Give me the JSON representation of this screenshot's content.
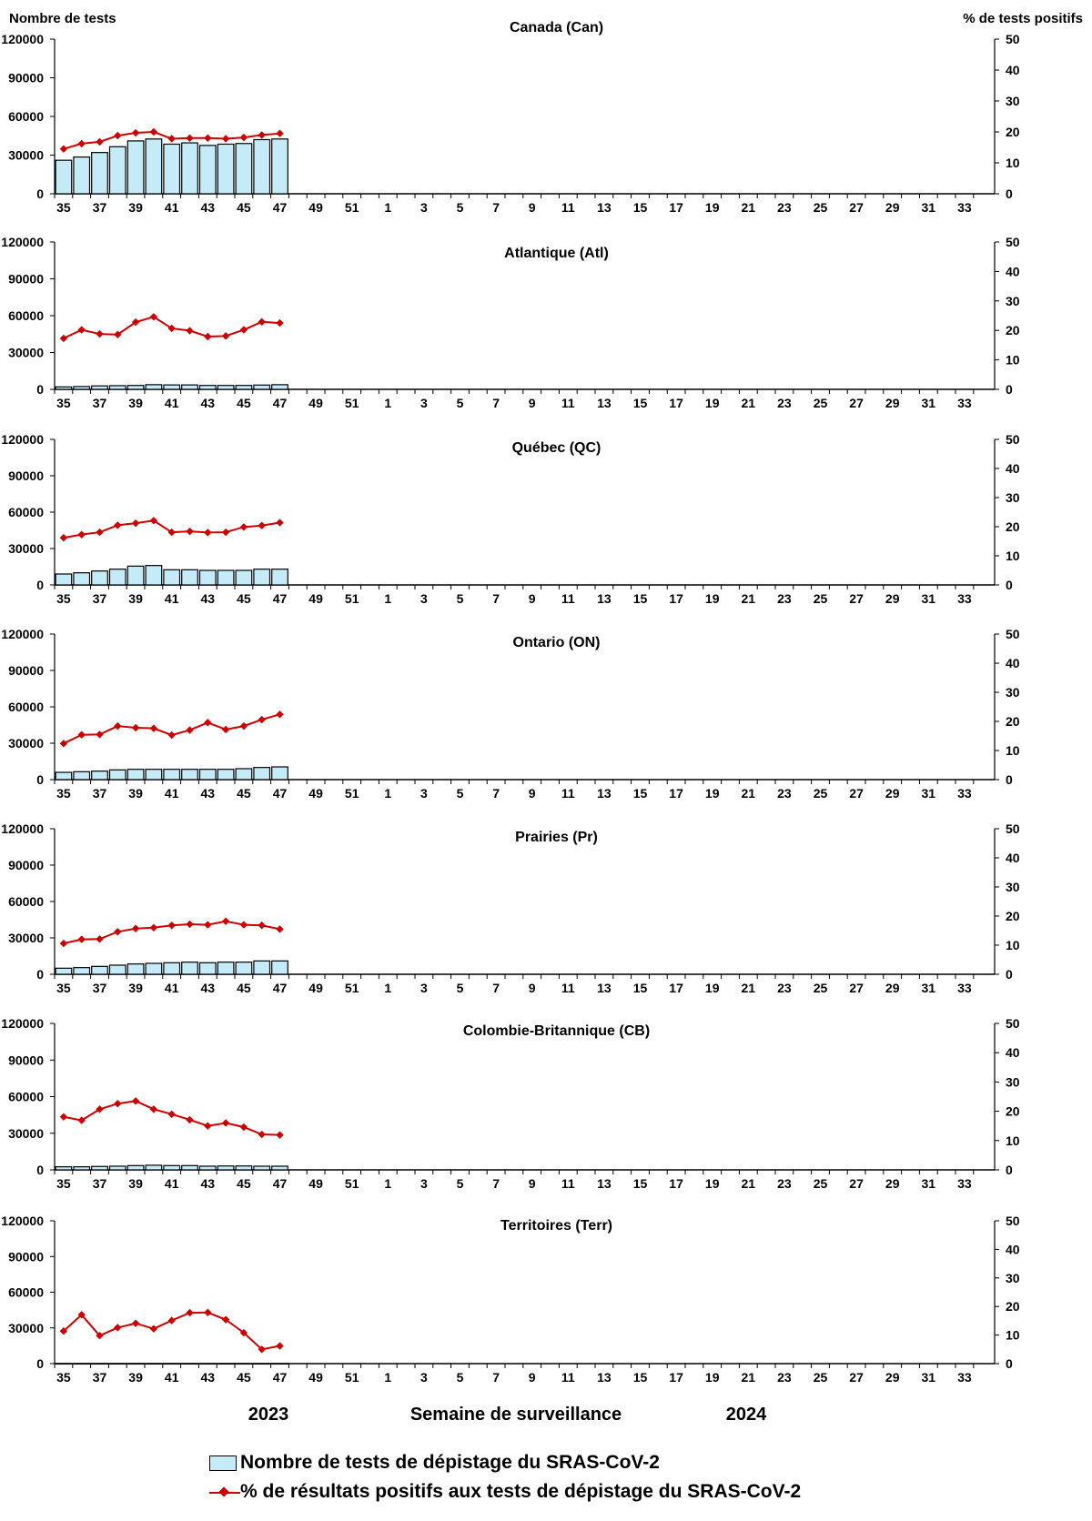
{
  "colors": {
    "bar_fill": "#c5ebf9",
    "bar_stroke": "#000000",
    "line": "#cc0000",
    "axis": "#000000"
  },
  "axis_titles": {
    "left": "Nombre de tests",
    "right": "% de tests positifs"
  },
  "footer": {
    "year_left": "2023",
    "xlabel": "Semaine de surveillance",
    "year_right": "2024"
  },
  "legend": {
    "bar_label": "Nombre de tests de dépistage du SRAS-CoV-2",
    "line_label": "% de résultats positifs aux tests de dépistage du SRAS-CoV-2"
  },
  "chart_data": [
    {
      "type": "bar+line",
      "title": "Canada (Can)",
      "categories": [
        35,
        36,
        37,
        38,
        39,
        40,
        41,
        42,
        43,
        44,
        45,
        46,
        47,
        48,
        49,
        50,
        51,
        52,
        1,
        2,
        3,
        4,
        5,
        6,
        7,
        8,
        9,
        10,
        11,
        12,
        13,
        14,
        15,
        16,
        17,
        18,
        19,
        20,
        21,
        22,
        23,
        24,
        25,
        26,
        27,
        28,
        29,
        30,
        31,
        32,
        33,
        34
      ],
      "x_tick_labels": [
        "35",
        "37",
        "39",
        "41",
        "43",
        "45",
        "47",
        "49",
        "51",
        "1",
        "3",
        "5",
        "7",
        "9",
        "11",
        "13",
        "15",
        "17",
        "19",
        "21",
        "23",
        "25",
        "27",
        "29",
        "31",
        "33"
      ],
      "y_left_ticks": [
        "0",
        "30000",
        "60000",
        "90000",
        "120000"
      ],
      "y_left_lim": [
        0,
        120000
      ],
      "y_right_ticks": [
        "0",
        "10",
        "20",
        "30",
        "40",
        "50"
      ],
      "y_right_lim": [
        0,
        50
      ],
      "tests": [
        26000,
        28500,
        32000,
        36500,
        41000,
        42500,
        38500,
        39500,
        37500,
        38500,
        39000,
        42000,
        42500
      ],
      "pct_positive": [
        14.5,
        16.2,
        16.8,
        18.8,
        19.7,
        20.0,
        17.8,
        18.0,
        18.0,
        17.8,
        18.2,
        19.0,
        19.5
      ]
    },
    {
      "type": "bar+line",
      "title": "Atlantique (Atl)",
      "categories": [
        35,
        36,
        37,
        38,
        39,
        40,
        41,
        42,
        43,
        44,
        45,
        46,
        47,
        48,
        49,
        50,
        51,
        52,
        1,
        2,
        3,
        4,
        5,
        6,
        7,
        8,
        9,
        10,
        11,
        12,
        13,
        14,
        15,
        16,
        17,
        18,
        19,
        20,
        21,
        22,
        23,
        24,
        25,
        26,
        27,
        28,
        29,
        30,
        31,
        32,
        33,
        34
      ],
      "x_tick_labels": [
        "35",
        "37",
        "39",
        "41",
        "43",
        "45",
        "47",
        "49",
        "51",
        "1",
        "3",
        "5",
        "7",
        "9",
        "11",
        "13",
        "15",
        "17",
        "19",
        "21",
        "23",
        "25",
        "27",
        "29",
        "31",
        "33"
      ],
      "y_left_ticks": [
        "0",
        "30000",
        "60000",
        "90000",
        "120000"
      ],
      "y_left_lim": [
        0,
        120000
      ],
      "y_right_ticks": [
        "0",
        "10",
        "20",
        "30",
        "40",
        "50"
      ],
      "y_right_lim": [
        0,
        50
      ],
      "tests": [
        2000,
        2300,
        2800,
        3000,
        3200,
        3800,
        3600,
        3600,
        3200,
        3200,
        3200,
        3500,
        3800
      ],
      "pct_positive": [
        17.3,
        20.2,
        18.8,
        18.6,
        22.8,
        24.6,
        20.7,
        19.9,
        17.9,
        18.1,
        20.2,
        22.9,
        22.5
      ]
    },
    {
      "type": "bar+line",
      "title": "Québec (QC)",
      "categories": [
        35,
        36,
        37,
        38,
        39,
        40,
        41,
        42,
        43,
        44,
        45,
        46,
        47,
        48,
        49,
        50,
        51,
        52,
        1,
        2,
        3,
        4,
        5,
        6,
        7,
        8,
        9,
        10,
        11,
        12,
        13,
        14,
        15,
        16,
        17,
        18,
        19,
        20,
        21,
        22,
        23,
        24,
        25,
        26,
        27,
        28,
        29,
        30,
        31,
        32,
        33,
        34
      ],
      "x_tick_labels": [
        "35",
        "37",
        "39",
        "41",
        "43",
        "45",
        "47",
        "49",
        "51",
        "1",
        "3",
        "5",
        "7",
        "9",
        "11",
        "13",
        "15",
        "17",
        "19",
        "21",
        "23",
        "25",
        "27",
        "29",
        "31",
        "33"
      ],
      "y_left_ticks": [
        "0",
        "30000",
        "60000",
        "90000",
        "120000"
      ],
      "y_left_lim": [
        0,
        120000
      ],
      "y_right_ticks": [
        "0",
        "10",
        "20",
        "30",
        "40",
        "50"
      ],
      "y_right_lim": [
        0,
        50
      ],
      "tests": [
        9000,
        10000,
        11500,
        13000,
        15500,
        16000,
        12500,
        12500,
        12000,
        12000,
        12000,
        13000,
        13000
      ],
      "pct_positive": [
        16.2,
        17.3,
        18.1,
        20.5,
        21.2,
        22.1,
        18.1,
        18.4,
        18.0,
        18.1,
        19.9,
        20.4,
        21.4
      ]
    },
    {
      "type": "bar+line",
      "title": "Ontario (ON)",
      "categories": [
        35,
        36,
        37,
        38,
        39,
        40,
        41,
        42,
        43,
        44,
        45,
        46,
        47,
        48,
        49,
        50,
        51,
        52,
        1,
        2,
        3,
        4,
        5,
        6,
        7,
        8,
        9,
        10,
        11,
        12,
        13,
        14,
        15,
        16,
        17,
        18,
        19,
        20,
        21,
        22,
        23,
        24,
        25,
        26,
        27,
        28,
        29,
        30,
        31,
        32,
        33,
        34
      ],
      "x_tick_labels": [
        "35",
        "37",
        "39",
        "41",
        "43",
        "45",
        "47",
        "49",
        "51",
        "1",
        "3",
        "5",
        "7",
        "9",
        "11",
        "13",
        "15",
        "17",
        "19",
        "21",
        "23",
        "25",
        "27",
        "29",
        "31",
        "33"
      ],
      "y_left_ticks": [
        "0",
        "30000",
        "60000",
        "90000",
        "120000"
      ],
      "y_left_lim": [
        0,
        120000
      ],
      "y_right_ticks": [
        "0",
        "10",
        "20",
        "30",
        "40",
        "50"
      ],
      "y_right_lim": [
        0,
        50
      ],
      "tests": [
        6000,
        6500,
        7000,
        8000,
        8500,
        8500,
        8500,
        8500,
        8500,
        8500,
        9000,
        10000,
        10500
      ],
      "pct_positive": [
        12.4,
        15.4,
        15.5,
        18.4,
        17.8,
        17.6,
        15.3,
        17.0,
        19.6,
        17.2,
        18.4,
        20.6,
        22.4
      ]
    },
    {
      "type": "bar+line",
      "title": "Prairies (Pr)",
      "categories": [
        35,
        36,
        37,
        38,
        39,
        40,
        41,
        42,
        43,
        44,
        45,
        46,
        47,
        48,
        49,
        50,
        51,
        52,
        1,
        2,
        3,
        4,
        5,
        6,
        7,
        8,
        9,
        10,
        11,
        12,
        13,
        14,
        15,
        16,
        17,
        18,
        19,
        20,
        21,
        22,
        23,
        24,
        25,
        26,
        27,
        28,
        29,
        30,
        31,
        32,
        33,
        34
      ],
      "x_tick_labels": [
        "35",
        "37",
        "39",
        "41",
        "43",
        "45",
        "47",
        "49",
        "51",
        "1",
        "3",
        "5",
        "7",
        "9",
        "11",
        "13",
        "15",
        "17",
        "19",
        "21",
        "23",
        "25",
        "27",
        "29",
        "31",
        "33"
      ],
      "y_left_ticks": [
        "0",
        "30000",
        "60000",
        "90000",
        "120000"
      ],
      "y_left_lim": [
        0,
        120000
      ],
      "y_right_ticks": [
        "0",
        "10",
        "20",
        "30",
        "40",
        "50"
      ],
      "y_right_lim": [
        0,
        50
      ],
      "tests": [
        5000,
        5500,
        6500,
        7500,
        8500,
        9000,
        9500,
        10000,
        9500,
        10000,
        10000,
        11000,
        11000
      ],
      "pct_positive": [
        10.6,
        12.0,
        12.1,
        14.6,
        15.7,
        16.0,
        16.8,
        17.2,
        17.0,
        18.2,
        17.0,
        16.8,
        15.5
      ]
    },
    {
      "type": "bar+line",
      "title": "Colombie-Britannique (CB)",
      "categories": [
        35,
        36,
        37,
        38,
        39,
        40,
        41,
        42,
        43,
        44,
        45,
        46,
        47,
        48,
        49,
        50,
        51,
        52,
        1,
        2,
        3,
        4,
        5,
        6,
        7,
        8,
        9,
        10,
        11,
        12,
        13,
        14,
        15,
        16,
        17,
        18,
        19,
        20,
        21,
        22,
        23,
        24,
        25,
        26,
        27,
        28,
        29,
        30,
        31,
        32,
        33,
        34
      ],
      "x_tick_labels": [
        "35",
        "37",
        "39",
        "41",
        "43",
        "45",
        "47",
        "49",
        "51",
        "1",
        "3",
        "5",
        "7",
        "9",
        "11",
        "13",
        "15",
        "17",
        "19",
        "21",
        "23",
        "25",
        "27",
        "29",
        "31",
        "33"
      ],
      "y_left_ticks": [
        "0",
        "30000",
        "60000",
        "90000",
        "120000"
      ],
      "y_left_lim": [
        0,
        120000
      ],
      "y_right_ticks": [
        "0",
        "10",
        "20",
        "30",
        "40",
        "50"
      ],
      "y_right_lim": [
        0,
        50
      ],
      "tests": [
        2500,
        2500,
        2800,
        3000,
        3500,
        3800,
        3500,
        3500,
        3000,
        3200,
        3200,
        3000,
        3000
      ],
      "pct_positive": [
        18.1,
        16.9,
        20.7,
        22.6,
        23.5,
        20.7,
        19.0,
        17.1,
        15.0,
        16.0,
        14.6,
        12.1,
        11.9
      ]
    },
    {
      "type": "bar+line",
      "title": "Territoires (Terr)",
      "categories": [
        35,
        36,
        37,
        38,
        39,
        40,
        41,
        42,
        43,
        44,
        45,
        46,
        47,
        48,
        49,
        50,
        51,
        52,
        1,
        2,
        3,
        4,
        5,
        6,
        7,
        8,
        9,
        10,
        11,
        12,
        13,
        14,
        15,
        16,
        17,
        18,
        19,
        20,
        21,
        22,
        23,
        24,
        25,
        26,
        27,
        28,
        29,
        30,
        31,
        32,
        33,
        34
      ],
      "x_tick_labels": [
        "35",
        "37",
        "39",
        "41",
        "43",
        "45",
        "47",
        "49",
        "51",
        "1",
        "3",
        "5",
        "7",
        "9",
        "11",
        "13",
        "15",
        "17",
        "19",
        "21",
        "23",
        "25",
        "27",
        "29",
        "31",
        "33"
      ],
      "y_left_ticks": [
        "0",
        "30000",
        "60000",
        "90000",
        "120000"
      ],
      "y_left_lim": [
        0,
        120000
      ],
      "y_right_ticks": [
        "0",
        "10",
        "20",
        "30",
        "40",
        "50"
      ],
      "y_right_lim": [
        0,
        50
      ],
      "tests": [
        50,
        50,
        50,
        50,
        50,
        50,
        50,
        50,
        50,
        50,
        50,
        50,
        50
      ],
      "pct_positive": [
        11.4,
        17.1,
        9.8,
        12.6,
        14.1,
        12.2,
        15.1,
        17.8,
        17.9,
        15.4,
        10.8,
        5.0,
        6.2
      ]
    }
  ]
}
